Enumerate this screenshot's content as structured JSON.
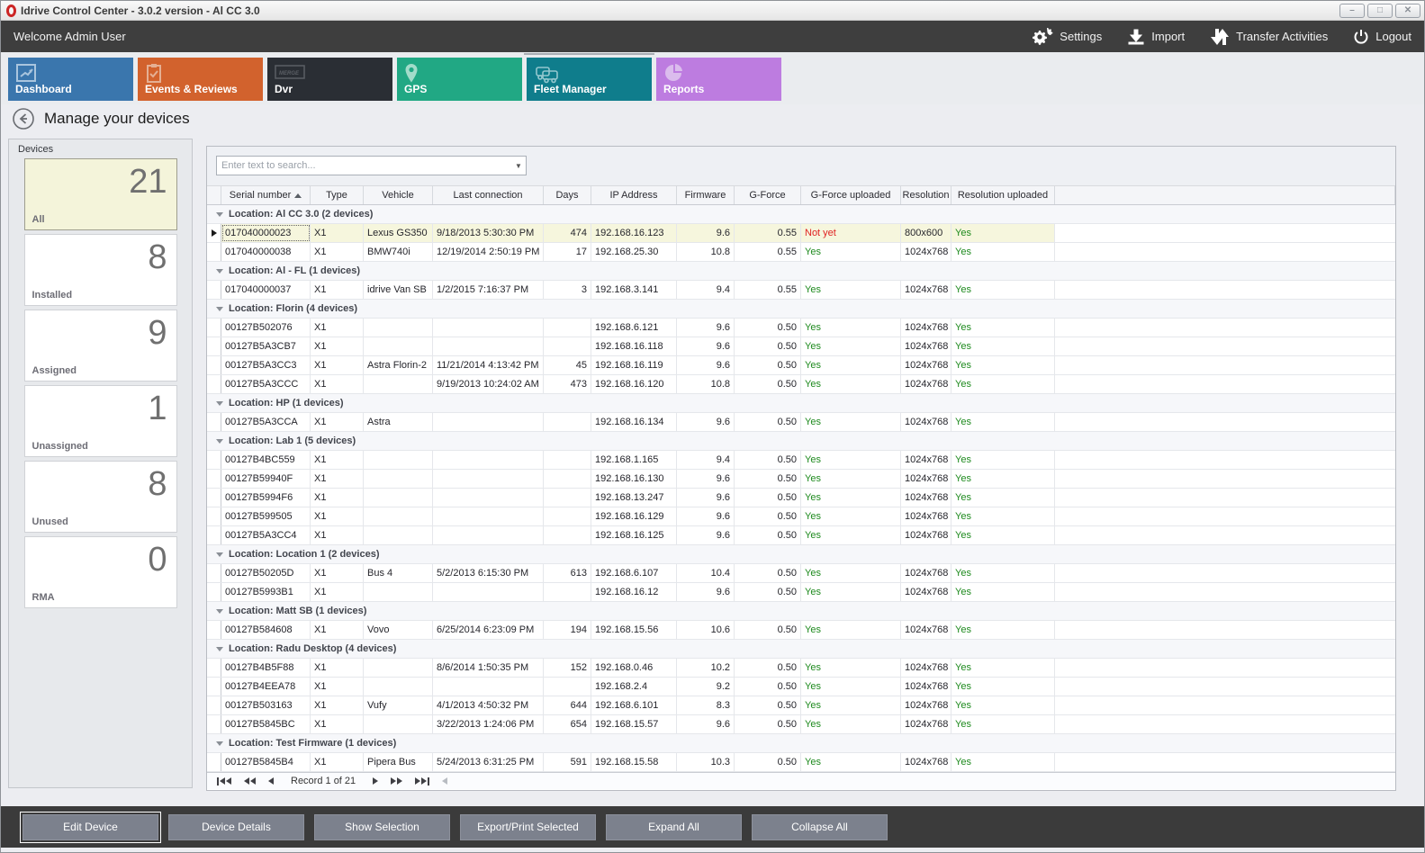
{
  "window": {
    "title": "Idrive Control Center - 3.0.2 version - Al CC 3.0",
    "controls": [
      {
        "name": "minimize",
        "glyph": "–"
      },
      {
        "name": "maximize",
        "glyph": "□"
      },
      {
        "name": "close",
        "glyph": "✕"
      }
    ]
  },
  "toolbar": {
    "welcome": "Welcome Admin User",
    "actions": [
      {
        "label": "Settings",
        "icon": "gears-icon"
      },
      {
        "label": "Import",
        "icon": "import-icon"
      },
      {
        "label": "Transfer Activities",
        "icon": "transfer-arrows-icon"
      },
      {
        "label": "Logout",
        "icon": "power-icon"
      }
    ]
  },
  "tabs": [
    {
      "label": "Dashboard",
      "icon": "chart-line-icon",
      "color": "#3a76ad",
      "selected": false
    },
    {
      "label": "Events & Reviews",
      "icon": "clipboard-check-icon",
      "color": "#d2622d",
      "selected": false
    },
    {
      "label": "Dvr",
      "icon": "dvr-box-icon",
      "color": "#2a2e34",
      "selected": false
    },
    {
      "label": "GPS",
      "icon": "map-pin-icon",
      "color": "#21a884",
      "selected": false
    },
    {
      "label": "Fleet Manager",
      "icon": "trucks-icon",
      "color": "#0f7d8c",
      "selected": true
    },
    {
      "label": "Reports",
      "icon": "pie-chart-icon",
      "color": "#bd7ce0",
      "selected": false
    }
  ],
  "page": {
    "title": "Manage your devices"
  },
  "sidebar": {
    "caption": "Devices",
    "cards": [
      {
        "label": "All",
        "count": "21",
        "selected": true
      },
      {
        "label": "Installed",
        "count": "8",
        "selected": false
      },
      {
        "label": "Assigned",
        "count": "9",
        "selected": false
      },
      {
        "label": "Unassigned",
        "count": "1",
        "selected": false
      },
      {
        "label": "Unused",
        "count": "8",
        "selected": false
      },
      {
        "label": "RMA",
        "count": "0",
        "selected": false
      }
    ]
  },
  "grid": {
    "search_placeholder": "Enter text to search...",
    "columns": [
      "Serial number",
      "Type",
      "Vehicle",
      "Last connection",
      "Days",
      "IP Address",
      "Firmware",
      "G-Force",
      "G-Force uploaded",
      "Resolution",
      "Resolution uploaded"
    ],
    "sorted_column": "Serial number",
    "sort_direction": "asc",
    "status_colors": {
      "yes": "#1e8a1e",
      "not_yet": "#e02222"
    },
    "selected_serial": "017040000023",
    "groups": [
      {
        "label": "Location: Al CC 3.0 (2 devices)",
        "rows": [
          [
            "017040000023",
            "X1",
            "Lexus GS350",
            "9/18/2013 5:30:30 PM",
            "474",
            "192.168.16.123",
            "9.6",
            "0.55",
            "Not yet",
            "800x600",
            "Yes"
          ],
          [
            "017040000038",
            "X1",
            "BMW740i",
            "12/19/2014 2:50:19 PM",
            "17",
            "192.168.25.30",
            "10.8",
            "0.55",
            "Yes",
            "1024x768",
            "Yes"
          ]
        ]
      },
      {
        "label": "Location: Al - FL (1 devices)",
        "rows": [
          [
            "017040000037",
            "X1",
            "idrive Van SB",
            "1/2/2015 7:16:37 PM",
            "3",
            "192.168.3.141",
            "9.4",
            "0.55",
            "Yes",
            "1024x768",
            "Yes"
          ]
        ]
      },
      {
        "label": "Location: Florin (4 devices)",
        "rows": [
          [
            "00127B502076",
            "X1",
            "",
            "",
            "",
            "192.168.6.121",
            "9.6",
            "0.50",
            "Yes",
            "1024x768",
            "Yes"
          ],
          [
            "00127B5A3CB7",
            "X1",
            "",
            "",
            "",
            "192.168.16.118",
            "9.6",
            "0.50",
            "Yes",
            "1024x768",
            "Yes"
          ],
          [
            "00127B5A3CC3",
            "X1",
            "Astra Florin-2",
            "11/21/2014 4:13:42 PM",
            "45",
            "192.168.16.119",
            "9.6",
            "0.50",
            "Yes",
            "1024x768",
            "Yes"
          ],
          [
            "00127B5A3CCC",
            "X1",
            "",
            "9/19/2013 10:24:02 AM",
            "473",
            "192.168.16.120",
            "10.8",
            "0.50",
            "Yes",
            "1024x768",
            "Yes"
          ]
        ]
      },
      {
        "label": "Location: HP (1 devices)",
        "rows": [
          [
            "00127B5A3CCA",
            "X1",
            "Astra",
            "",
            "",
            "192.168.16.134",
            "9.6",
            "0.50",
            "Yes",
            "1024x768",
            "Yes"
          ]
        ]
      },
      {
        "label": "Location: Lab 1 (5 devices)",
        "rows": [
          [
            "00127B4BC559",
            "X1",
            "",
            "",
            "",
            "192.168.1.165",
            "9.4",
            "0.50",
            "Yes",
            "1024x768",
            "Yes"
          ],
          [
            "00127B59940F",
            "X1",
            "",
            "",
            "",
            "192.168.16.130",
            "9.6",
            "0.50",
            "Yes",
            "1024x768",
            "Yes"
          ],
          [
            "00127B5994F6",
            "X1",
            "",
            "",
            "",
            "192.168.13.247",
            "9.6",
            "0.50",
            "Yes",
            "1024x768",
            "Yes"
          ],
          [
            "00127B599505",
            "X1",
            "",
            "",
            "",
            "192.168.16.129",
            "9.6",
            "0.50",
            "Yes",
            "1024x768",
            "Yes"
          ],
          [
            "00127B5A3CC4",
            "X1",
            "",
            "",
            "",
            "192.168.16.125",
            "9.6",
            "0.50",
            "Yes",
            "1024x768",
            "Yes"
          ]
        ]
      },
      {
        "label": "Location: Location 1 (2 devices)",
        "rows": [
          [
            "00127B50205D",
            "X1",
            "Bus 4",
            "5/2/2013 6:15:30 PM",
            "613",
            "192.168.6.107",
            "10.4",
            "0.50",
            "Yes",
            "1024x768",
            "Yes"
          ],
          [
            "00127B5993B1",
            "X1",
            "",
            "",
            "",
            "192.168.16.12",
            "9.6",
            "0.50",
            "Yes",
            "1024x768",
            "Yes"
          ]
        ]
      },
      {
        "label": "Location: Matt SB (1 devices)",
        "rows": [
          [
            "00127B584608",
            "X1",
            "Vovo",
            "6/25/2014 6:23:09 PM",
            "194",
            "192.168.15.56",
            "10.6",
            "0.50",
            "Yes",
            "1024x768",
            "Yes"
          ]
        ]
      },
      {
        "label": "Location: Radu Desktop (4 devices)",
        "rows": [
          [
            "00127B4B5F88",
            "X1",
            "",
            "8/6/2014 1:50:35 PM",
            "152",
            "192.168.0.46",
            "10.2",
            "0.50",
            "Yes",
            "1024x768",
            "Yes"
          ],
          [
            "00127B4EEA78",
            "X1",
            "",
            "",
            "",
            "192.168.2.4",
            "9.2",
            "0.50",
            "Yes",
            "1024x768",
            "Yes"
          ],
          [
            "00127B503163",
            "X1",
            "Vufy",
            "4/1/2013 4:50:32 PM",
            "644",
            "192.168.6.101",
            "8.3",
            "0.50",
            "Yes",
            "1024x768",
            "Yes"
          ],
          [
            "00127B5845BC",
            "X1",
            "",
            "3/22/2013 1:24:06 PM",
            "654",
            "192.168.15.57",
            "9.6",
            "0.50",
            "Yes",
            "1024x768",
            "Yes"
          ]
        ]
      },
      {
        "label": "Location: Test Firmware (1 devices)",
        "rows": [
          [
            "00127B5845B4",
            "X1",
            "Pipera Bus",
            "5/24/2013 6:31:25 PM",
            "591",
            "192.168.15.58",
            "10.3",
            "0.50",
            "Yes",
            "1024x768",
            "Yes"
          ]
        ]
      }
    ],
    "pager_text": "Record 1 of 21"
  },
  "footer": {
    "buttons": [
      "Edit Device",
      "Device Details",
      "Show Selection",
      "Export/Print Selected",
      "Expand All",
      "Collapse All"
    ],
    "focused_button": "Edit Device"
  }
}
